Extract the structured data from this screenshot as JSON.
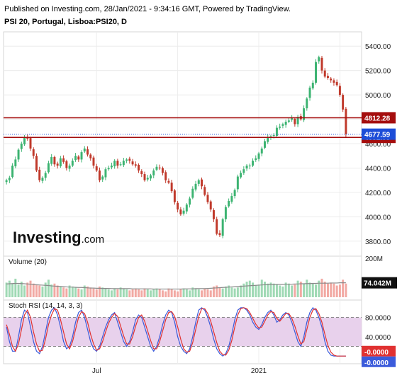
{
  "header": {
    "line1": "Published on Investing.com, 28/Jan/2021 - 9:34:16 GMT, Powered by TradingView.",
    "line2": "PSI 20, Portugal, Lisboa:PSI20, D"
  },
  "logo": {
    "main": "Investing",
    "suffix": ".com"
  },
  "colors": {
    "up": "#3cb371",
    "down": "#c0392b",
    "level": "#a50e0e",
    "last": "#1d4ed8",
    "stoch_k": "#3b5bdb",
    "stoch_d": "#e03131",
    "stoch_band": "#e8d1ec"
  },
  "chart_data": [
    {
      "type": "candlestick",
      "title": "PSI 20, Portugal, Lisboa:PSI20, D",
      "ylim": [
        3700,
        5500
      ],
      "yticks": [
        "5400.00",
        "5200.00",
        "5000.00",
        "4800.00",
        "4600.00",
        "4400.00",
        "4200.00",
        "4000.00",
        "3800.00"
      ],
      "xticks": [
        "Jul",
        "2021"
      ],
      "close_series": [
        4300,
        4320,
        4420,
        4470,
        4550,
        4600,
        4650,
        4640,
        4560,
        4500,
        4380,
        4300,
        4320,
        4360,
        4440,
        4490,
        4430,
        4420,
        4480,
        4450,
        4400,
        4420,
        4460,
        4500,
        4470,
        4530,
        4560,
        4510,
        4480,
        4420,
        4380,
        4300,
        4330,
        4390,
        4400,
        4420,
        4460,
        4420,
        4430,
        4460,
        4470,
        4460,
        4430,
        4420,
        4380,
        4350,
        4300,
        4320,
        4340,
        4380,
        4410,
        4400,
        4360,
        4300,
        4280,
        4210,
        4120,
        4060,
        4020,
        4050,
        4100,
        4150,
        4230,
        4270,
        4300,
        4250,
        4180,
        4120,
        4060,
        3980,
        3860,
        3850,
        3980,
        4080,
        4130,
        4170,
        4220,
        4330,
        4360,
        4390,
        4420,
        4420,
        4460,
        4480,
        4520,
        4560,
        4620,
        4650,
        4660,
        4670,
        4730,
        4740,
        4760,
        4780,
        4790,
        4810,
        4760,
        4820,
        4800,
        4890,
        4970,
        5060,
        5100,
        5270,
        5310,
        5200,
        5150,
        5140,
        5120,
        5100,
        5080,
        5000,
        4880,
        4678
      ],
      "horizontal_levels": [
        {
          "label": "4812.28",
          "value": 4812.28,
          "style": "solid"
        },
        {
          "label": "4651.09",
          "value": 4651.09,
          "style": "solid"
        },
        {
          "label": "4677.59",
          "value": 4677.59,
          "style": "dotted-last"
        }
      ]
    },
    {
      "type": "bar",
      "title": "Volume (20)",
      "ylim": [
        0,
        200
      ],
      "yticks": [
        "200M"
      ],
      "last_label": "74.042M",
      "volumes": [
        75,
        85,
        70,
        95,
        65,
        80,
        60,
        75,
        85,
        70,
        65,
        60,
        55,
        75,
        90,
        65,
        70,
        60,
        55,
        50,
        45,
        60,
        55,
        50,
        45,
        40,
        60,
        55,
        50,
        45,
        40,
        55,
        50,
        45,
        40,
        35,
        45,
        40,
        50,
        45,
        40,
        35,
        40,
        45,
        40,
        35,
        45,
        40,
        35,
        40,
        45,
        40,
        35,
        30,
        45,
        40,
        35,
        30,
        40,
        45,
        40,
        35,
        50,
        45,
        40,
        35,
        45,
        40,
        35,
        55,
        60,
        50,
        45,
        55,
        60,
        50,
        45,
        50,
        60,
        70,
        80,
        85,
        75,
        60,
        65,
        90,
        80,
        70,
        75,
        70,
        65,
        60,
        55,
        75,
        70,
        60,
        65,
        85,
        80,
        70,
        90,
        75,
        70,
        65,
        85,
        95,
        80,
        70,
        75,
        70,
        60,
        65,
        90,
        70
      ],
      "ma_series": [
        68,
        69,
        70,
        71,
        71,
        70,
        69,
        68,
        67,
        66,
        64,
        63,
        62,
        61,
        60,
        58,
        57,
        56,
        55,
        54,
        53,
        52,
        52,
        51,
        50,
        50,
        49,
        48,
        47,
        47,
        46,
        46,
        45,
        45,
        45,
        44,
        44,
        44,
        44,
        44,
        44,
        44,
        43,
        43,
        43,
        43,
        43,
        43,
        43,
        42,
        42,
        42,
        42,
        42,
        42,
        42,
        42,
        42,
        42,
        43,
        43,
        43,
        43,
        44,
        44,
        44,
        44,
        45,
        46,
        47,
        48,
        49,
        50,
        51,
        52,
        53,
        54,
        55,
        56,
        57,
        58,
        59,
        60,
        61,
        62,
        63,
        64,
        64,
        65,
        65,
        66,
        66,
        66,
        67,
        67,
        67,
        68,
        68,
        69,
        69,
        70,
        70,
        71,
        71,
        72,
        72,
        72,
        72,
        73,
        73,
        73,
        74,
        74,
        74
      ]
    },
    {
      "type": "line",
      "title": "Stoch RSI (14, 14, 3, 3)",
      "ylim": [
        -10,
        110
      ],
      "yticks": [
        "80.0000",
        "40.0000"
      ],
      "band": [
        20,
        80
      ],
      "last_labels": [
        "-0.0000",
        "-0.0000"
      ],
      "series": [
        {
          "values": [
            60,
            30,
            10,
            10,
            40,
            75,
            95,
            90,
            60,
            30,
            10,
            5,
            20,
            50,
            80,
            95,
            100,
            85,
            60,
            30,
            15,
            20,
            40,
            70,
            90,
            95,
            80,
            55,
            30,
            15,
            10,
            20,
            40,
            60,
            75,
            85,
            90,
            70,
            50,
            30,
            20,
            30,
            50,
            75,
            85,
            80,
            60,
            40,
            20,
            10,
            20,
            40,
            65,
            85,
            95,
            90,
            70,
            40,
            20,
            10,
            5,
            15,
            40,
            70,
            95,
            100,
            95,
            80,
            60,
            35,
            15,
            5,
            0,
            5,
            20,
            45,
            75,
            95,
            100,
            100,
            95,
            85,
            70,
            60,
            55,
            65,
            80,
            90,
            95,
            85,
            70,
            75,
            85,
            90,
            85,
            70,
            50,
            30,
            20,
            40,
            70,
            90,
            100,
            95,
            80,
            60,
            30,
            10,
            2,
            0,
            0,
            0,
            0,
            0
          ]
        },
        {
          "values": [
            65,
            45,
            20,
            10,
            25,
            55,
            85,
            95,
            80,
            50,
            25,
            10,
            12,
            35,
            65,
            85,
            98,
            95,
            75,
            50,
            25,
            15,
            30,
            55,
            80,
            92,
            88,
            70,
            45,
            25,
            12,
            15,
            30,
            50,
            68,
            80,
            88,
            82,
            62,
            42,
            25,
            25,
            40,
            62,
            80,
            85,
            72,
            52,
            32,
            15,
            15,
            30,
            52,
            75,
            90,
            92,
            82,
            60,
            35,
            15,
            8,
            10,
            28,
            55,
            82,
            98,
            98,
            88,
            72,
            50,
            28,
            10,
            3,
            2,
            12,
            32,
            60,
            85,
            98,
            100,
            98,
            90,
            78,
            66,
            58,
            60,
            72,
            85,
            92,
            90,
            78,
            72,
            80,
            88,
            88,
            78,
            62,
            42,
            25,
            30,
            55,
            80,
            95,
            98,
            88,
            70,
            45,
            22,
            8,
            2,
            0,
            0,
            0,
            0
          ]
        }
      ]
    }
  ]
}
